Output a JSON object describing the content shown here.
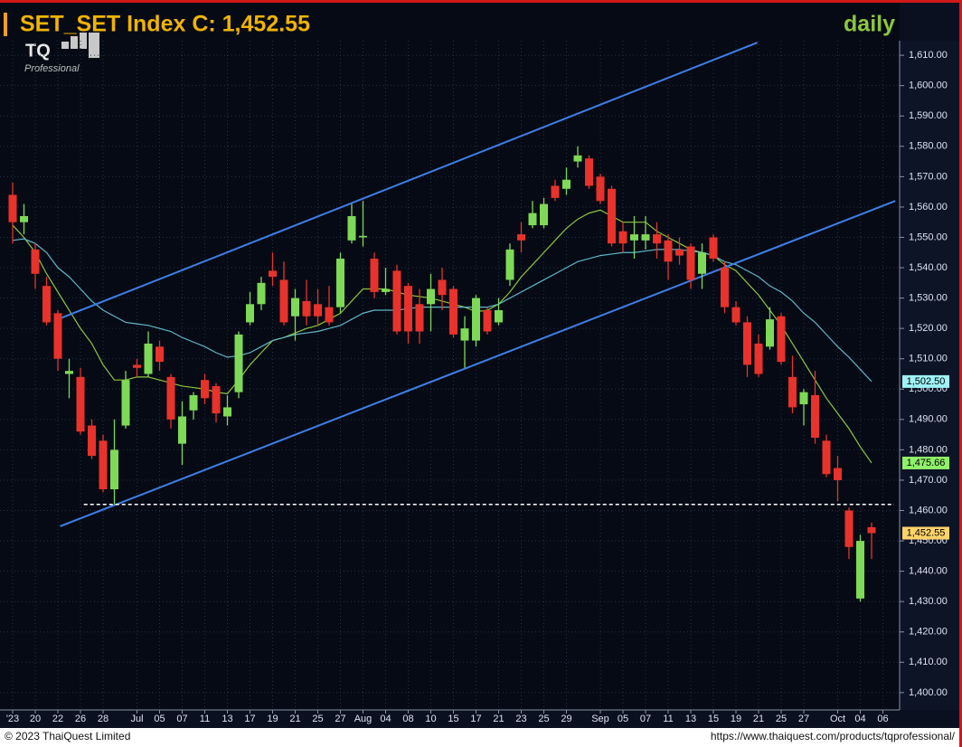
{
  "chart_data": {
    "type": "candlestick",
    "title": "SET_SET Index C: 1,452.55",
    "period": "daily",
    "logo": {
      "mark": "TQ",
      "subtitle": "Professional"
    },
    "footer_left": "© 2023 ThaiQuest Limited",
    "footer_right": "https://www.thaiquest.com/products/tqprofessional/",
    "categories": [
      "'23",
      null,
      "20",
      null,
      "22",
      null,
      "26",
      null,
      "28",
      null,
      null,
      "Jul",
      null,
      "05",
      null,
      "07",
      null,
      "11",
      null,
      "13",
      null,
      "17",
      null,
      "19",
      null,
      "21",
      null,
      "25",
      null,
      "27",
      null,
      "Aug",
      null,
      "04",
      null,
      "08",
      null,
      "10",
      null,
      "15",
      null,
      "17",
      null,
      "21",
      null,
      "23",
      null,
      "25",
      null,
      "29",
      null,
      null,
      "Sep",
      null,
      "05",
      null,
      "07",
      null,
      "11",
      null,
      "13",
      null,
      "15",
      null,
      "19",
      null,
      "21",
      null,
      "25",
      null,
      "27",
      null,
      null,
      "Oct",
      null,
      "04",
      null,
      "06"
    ],
    "open": [
      1564,
      1555,
      1546,
      1534,
      1525,
      1505,
      1504,
      1488,
      1483,
      1467,
      1488,
      1508,
      1505,
      1514,
      1504,
      1482,
      1493,
      1503,
      1501,
      1491,
      1499,
      1522,
      1528,
      1539,
      1536,
      1524,
      1529,
      1528,
      1527,
      1527,
      1549,
      1550,
      1543,
      1532,
      1539,
      1534,
      1528,
      1528,
      1536,
      1533,
      1516,
      1516,
      1526,
      1522,
      1536,
      1551,
      1554,
      1554,
      1567,
      1566,
      1575,
      1576,
      1570,
      1566,
      1552,
      1549,
      1549,
      1551,
      1549,
      1546,
      1547,
      1538,
      1550,
      1540,
      1527,
      1522,
      1515,
      1514,
      1524,
      1504,
      1495,
      1498,
      1483,
      1474,
      1460,
      1431,
      1454.5,
      null
    ],
    "high": [
      1568,
      1561,
      1548,
      1537,
      1526,
      1510,
      1507,
      1490,
      1485,
      1490,
      1506,
      1510,
      1519,
      1516,
      1505,
      1496,
      1499,
      1505,
      1502,
      1498,
      1519,
      1532,
      1537,
      1545,
      1542,
      1533,
      1536,
      1533,
      1534,
      1545,
      1561,
      1562,
      1545,
      1540,
      1541,
      1535,
      1533,
      1538,
      1540,
      1534,
      1524,
      1531,
      1527,
      1530,
      1548,
      1555,
      1562,
      1563,
      1569,
      1573,
      1580,
      1577,
      1571,
      1567,
      1555,
      1557,
      1557,
      1555,
      1551,
      1550,
      1548,
      1548,
      1551,
      1542,
      1529,
      1524,
      1518,
      1527,
      1525,
      1511,
      1500,
      1506,
      1485,
      1478,
      1461,
      1452,
      1456,
      null
    ],
    "low": [
      1548,
      1551,
      1533,
      1521,
      1506,
      1497,
      1485,
      1477,
      1466,
      1462,
      1487,
      1504,
      1504,
      1506,
      1487,
      1475,
      1490,
      1495,
      1489,
      1488,
      1497,
      1521,
      1526,
      1534,
      1521,
      1516,
      1521,
      1521,
      1521,
      1525,
      1548,
      1547,
      1530,
      1531,
      1518,
      1515,
      1515,
      1519,
      1526,
      1517,
      1507,
      1514,
      1518,
      1521,
      1534,
      1545,
      1553,
      1553,
      1562,
      1564,
      1573,
      1566,
      1561,
      1547,
      1545,
      1543,
      1546,
      1543,
      1536,
      1541,
      1533,
      1533,
      1542,
      1525,
      1521,
      1504,
      1504,
      1513,
      1508,
      1492,
      1488,
      1482,
      1471,
      1463,
      1444,
      1430,
      1444,
      null
    ],
    "close": [
      1555,
      1557,
      1538,
      1522,
      1510,
      1506,
      1486,
      1478,
      1467,
      1480,
      1503,
      1507,
      1515,
      1509,
      1490,
      1491,
      1498,
      1497,
      1492,
      1494,
      1518,
      1528,
      1535,
      1537,
      1522,
      1530,
      1524,
      1524,
      1522,
      1543,
      1557,
      1550.5,
      1532,
      1533,
      1519,
      1519,
      1519,
      1533,
      1531,
      1518,
      1520,
      1530,
      1519,
      1526,
      1546,
      1549,
      1558,
      1561,
      1563,
      1569,
      1577,
      1567,
      1562,
      1548,
      1548,
      1551,
      1551,
      1548,
      1542,
      1544,
      1536,
      1545,
      1543,
      1527,
      1522,
      1508,
      1505,
      1523,
      1509,
      1494,
      1499,
      1484,
      1472,
      1470,
      1448,
      1450,
      1452.55,
      null
    ],
    "up_color": "#7ed957",
    "down_color": "#e8322b",
    "moving_averages": [
      {
        "color": "#8dc63f",
        "values": [
          1554,
          1550,
          1545,
          1538,
          1532,
          1526,
          1520,
          1515,
          1508,
          1503,
          1503,
          1504,
          1504,
          1503,
          1502,
          1501,
          1500.5,
          1500,
          1499,
          1498.5,
          1503,
          1508,
          1512,
          1516,
          1517,
          1518.5,
          1520,
          1521,
          1523,
          1525,
          1529,
          1533,
          1533,
          1533,
          1532,
          1531,
          1530.5,
          1530,
          1529,
          1528,
          1527,
          1525.5,
          1526,
          1528,
          1532,
          1537,
          1541,
          1545,
          1549,
          1553,
          1556,
          1558,
          1559,
          1557,
          1555,
          1555,
          1555,
          1552,
          1550,
          1548,
          1546,
          1545,
          1544,
          1541,
          1539,
          1535,
          1531,
          1526,
          1521,
          1515,
          1509,
          1503,
          1497,
          1492,
          1487,
          1481,
          1475.66,
          null
        ]
      },
      {
        "color": "#5fb8c8",
        "values": [
          1549,
          1549.5,
          1548,
          1545,
          1540,
          1537,
          1533,
          1529,
          1526,
          1524,
          1522,
          1521.5,
          1521,
          1520,
          1519,
          1517,
          1515.5,
          1514,
          1512,
          1510.5,
          1511,
          1512,
          1514,
          1516,
          1517,
          1518,
          1518.5,
          1519,
          1520,
          1521,
          1523,
          1525,
          1526,
          1526,
          1526,
          1526.5,
          1527,
          1527,
          1527,
          1527,
          1527,
          1527,
          1527,
          1528,
          1530,
          1532,
          1534,
          1536,
          1538,
          1540,
          1542,
          1543,
          1544,
          1544.5,
          1545,
          1545,
          1545.5,
          1546,
          1546,
          1546,
          1545.5,
          1545,
          1544,
          1542,
          1541,
          1539,
          1537,
          1534,
          1532,
          1529,
          1525,
          1522,
          1518,
          1514,
          1510.5,
          1506.5,
          1502.5,
          null
        ]
      }
    ],
    "trendlines": [
      {
        "color": "#3f7fe6",
        "x": [
          4.2,
          65.9
        ],
        "y": [
          1523.3,
          1614.2
        ]
      },
      {
        "color": "#3f7fe6",
        "x": [
          4.2,
          78.1
        ],
        "y": [
          1454.8,
          1562
        ]
      }
    ],
    "hline": {
      "value": 1462,
      "x": [
        6.3,
        78
      ],
      "color": "#ffffff"
    },
    "price_tags": [
      {
        "value": 1502.5,
        "label": "1,502.50",
        "color": "#9ff3f6"
      },
      {
        "value": 1475.66,
        "label": "1,475.66",
        "color": "#8ff06a"
      },
      {
        "value": 1452.55,
        "label": "1,452.55",
        "color": "#ffd36a"
      }
    ],
    "ylim": [
      1394.3,
      1614.8
    ],
    "yticks": [
      {
        "value": 1400,
        "label": "1,400.00"
      },
      {
        "value": 1410,
        "label": "1,410.00"
      },
      {
        "value": 1420,
        "label": "1,420.00"
      },
      {
        "value": 1430,
        "label": "1,430.00"
      },
      {
        "value": 1440,
        "label": "1,440.00"
      },
      {
        "value": 1450,
        "label": "1,450.00"
      },
      {
        "value": 1460,
        "label": "1,460.00"
      },
      {
        "value": 1470,
        "label": "1,470.00"
      },
      {
        "value": 1480,
        "label": "1,480.00"
      },
      {
        "value": 1490,
        "label": "1,490.00"
      },
      {
        "value": 1500,
        "label": "1,500.00"
      },
      {
        "value": 1510,
        "label": "1,510.00"
      },
      {
        "value": 1520,
        "label": "1,520.00"
      },
      {
        "value": 1530,
        "label": "1,530.00"
      },
      {
        "value": 1540,
        "label": "1,540.00"
      },
      {
        "value": 1550,
        "label": "1,550.00"
      },
      {
        "value": 1560,
        "label": "1,560.00"
      },
      {
        "value": 1570,
        "label": "1,570.00"
      },
      {
        "value": 1580,
        "label": "1,580.00"
      },
      {
        "value": 1590,
        "label": "1,590.00"
      },
      {
        "value": 1600,
        "label": "1,600.00"
      },
      {
        "value": 1610,
        "label": "1,610.00"
      }
    ],
    "grid": true
  }
}
